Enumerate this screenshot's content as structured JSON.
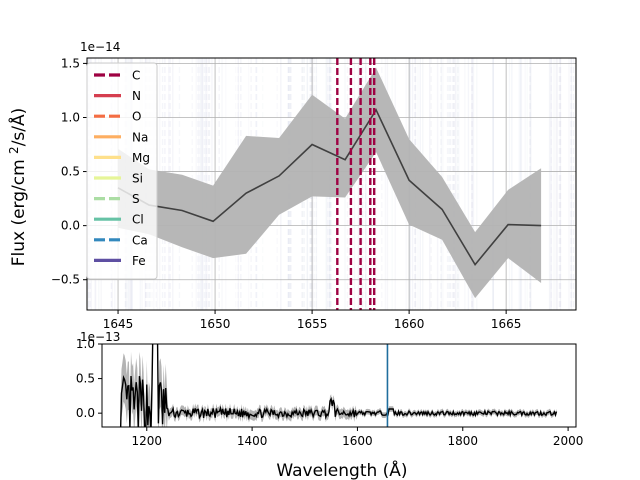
{
  "figure": {
    "ylabel": "Flux (erg/cm$^2$/s/Å)",
    "xlabel": "Wavelength (Å)"
  },
  "chart_data": [
    {
      "type": "line",
      "panel": "top",
      "offset_text": "1e−14",
      "x": [
        1645.0,
        1646.6,
        1648.3,
        1649.9,
        1651.6,
        1653.3,
        1655.0,
        1656.7,
        1658.3,
        1660.0,
        1661.7,
        1663.4,
        1665.1,
        1666.8
      ],
      "y": [
        0.35,
        0.19,
        0.14,
        0.04,
        0.3,
        0.46,
        0.75,
        0.61,
        1.07,
        0.42,
        0.15,
        -0.36,
        0.01,
        0.0
      ],
      "lower": [
        -0.02,
        -0.08,
        -0.2,
        -0.3,
        -0.26,
        0.1,
        0.27,
        0.26,
        0.68,
        0.01,
        -0.13,
        -0.67,
        -0.3,
        -0.53
      ],
      "upper": [
        0.71,
        0.52,
        0.47,
        0.37,
        0.83,
        0.81,
        1.21,
        0.99,
        1.46,
        0.8,
        0.45,
        -0.06,
        0.33,
        0.53
      ],
      "xlim": [
        1643.4,
        1668.6
      ],
      "ylim": [
        -0.78,
        1.55
      ],
      "xticks": [
        1645,
        1650,
        1655,
        1660,
        1665
      ],
      "yticks": [
        -0.5,
        0.0,
        0.5,
        1.0,
        1.5
      ],
      "ytick_labels": [
        "−0.5",
        "0.0",
        "0.5",
        "1.0",
        "1.5"
      ],
      "vlines": [
        1656.3,
        1657.0,
        1657.5,
        1658.0,
        1658.2
      ],
      "vline_color": "#9e0142",
      "line_color": "#404040",
      "band_color": "#b3b3b3",
      "grid": true,
      "legend_position": "upper-left",
      "legend": [
        {
          "label": "C",
          "color": "#9e0142",
          "dashed": true
        },
        {
          "label": "N",
          "color": "#d53e4f",
          "dashed": false
        },
        {
          "label": "O",
          "color": "#f46d43",
          "dashed": true
        },
        {
          "label": "Na",
          "color": "#fdae61",
          "dashed": false
        },
        {
          "label": "Mg",
          "color": "#fee08b",
          "dashed": false
        },
        {
          "label": "Si",
          "color": "#e6f598",
          "dashed": false
        },
        {
          "label": "S",
          "color": "#abdda4",
          "dashed": true
        },
        {
          "label": "Cl",
          "color": "#66c2a5",
          "dashed": false
        },
        {
          "label": "Ca",
          "color": "#3288bd",
          "dashed": true
        },
        {
          "label": "Fe",
          "color": "#5e4fa2",
          "dashed": false
        }
      ]
    },
    {
      "type": "line",
      "panel": "bottom",
      "offset_text": "1e−13",
      "xlim": [
        1115,
        2015
      ],
      "ylim": [
        -0.2,
        1.0
      ],
      "xticks": [
        1200,
        1400,
        1600,
        1800,
        2000
      ],
      "yticks": [
        0.0,
        0.5,
        1.0
      ],
      "ytick_labels": [
        "0.0",
        "0.5",
        "1.0"
      ],
      "marker_line": 1657,
      "marker_color": "#1f6e9e",
      "line_color": "#000000",
      "band_color": "#b3b3b3"
    }
  ]
}
